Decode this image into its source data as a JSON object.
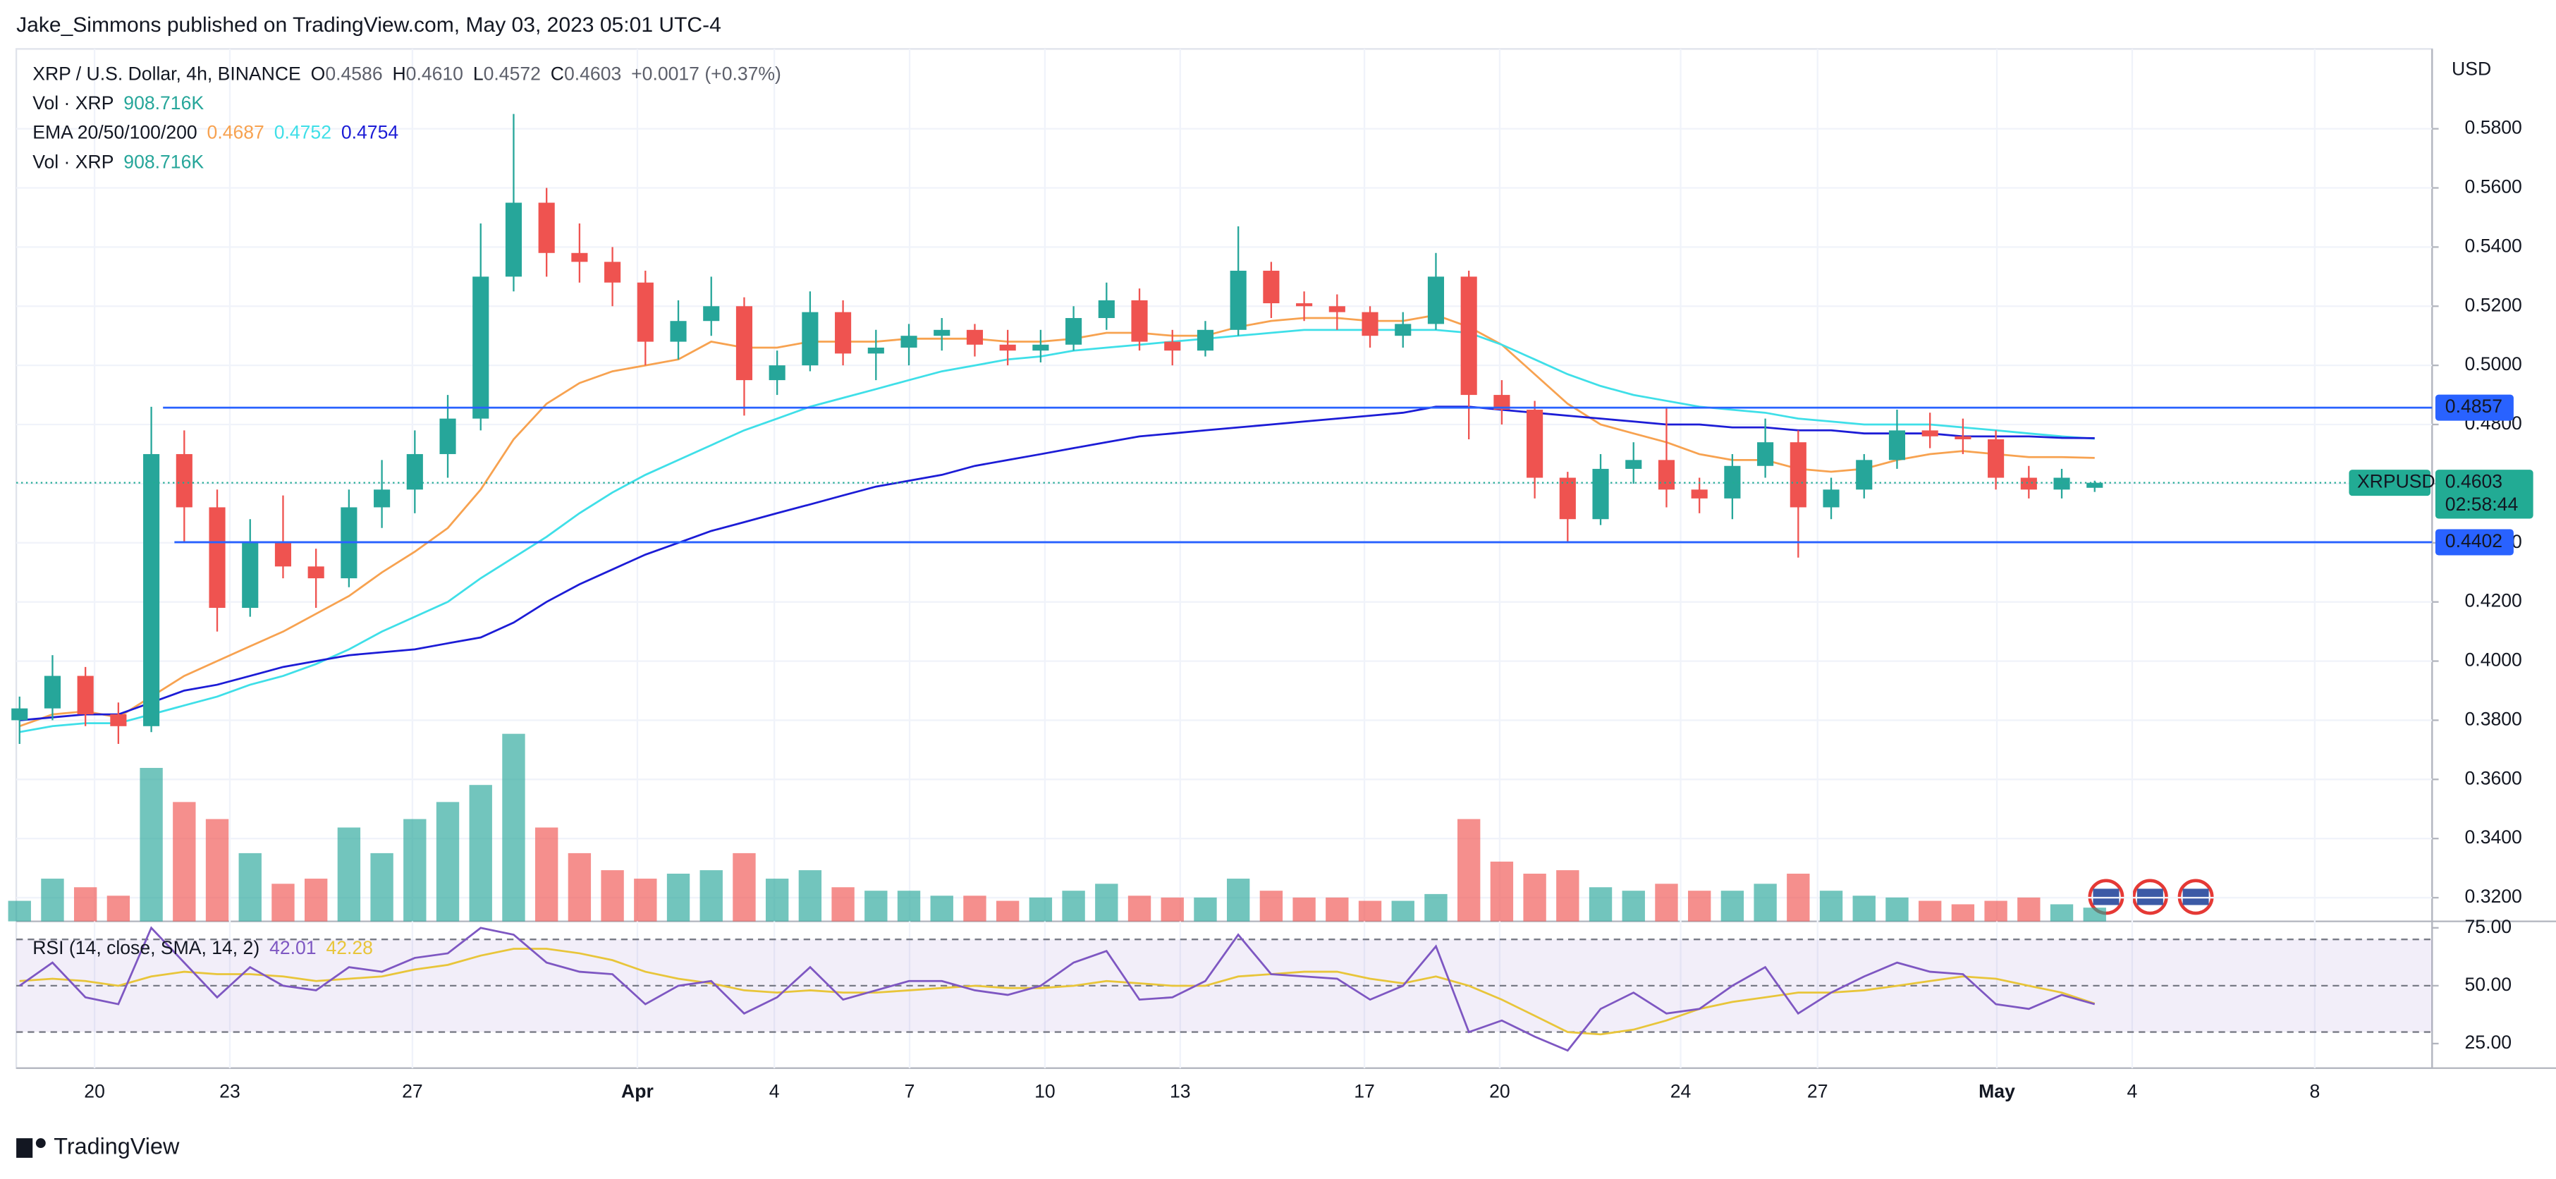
{
  "header": {
    "published": "Jake_Simmons published on TradingView.com, May 03, 2023 05:01 UTC-4",
    "legend": [
      [
        {
          "text": "XRP / U.S. Dollar, 4h, BINANCE"
        },
        {
          "text": "O"
        },
        {
          "text": "0.4586",
          "color": "#5d606b"
        },
        {
          "text": "H"
        },
        {
          "text": "0.4610",
          "color": "#5d606b"
        },
        {
          "text": "L"
        },
        {
          "text": "0.4572",
          "color": "#5d606b"
        },
        {
          "text": "C"
        },
        {
          "text": "0.4603",
          "color": "#5d606b"
        },
        {
          "text": "+0.0017 (+0.37%)",
          "color": "#5d606b"
        }
      ],
      [
        {
          "text": "Vol · XRP"
        },
        {
          "text": "908.716K",
          "color": "#26a69a"
        }
      ],
      [
        {
          "text": "EMA 20/50/100/200"
        },
        {
          "text": "0.4687",
          "color": "#f7a250"
        },
        {
          "text": "0.4752",
          "color": "#3fdfe8"
        },
        {
          "text": "0.4754",
          "color": "#1c1cd6"
        }
      ],
      [
        {
          "text": "Vol · XRP"
        },
        {
          "text": "908.716K",
          "color": "#26a69a"
        }
      ]
    ],
    "rsi_legend": [
      {
        "text": "RSI (14, close, SMA, 14, 2)"
      },
      {
        "text": "42.01",
        "color": "#7e57c2"
      },
      {
        "text": "42.28",
        "color": "#e8c53a"
      }
    ],
    "currency": "USD"
  },
  "footer": {
    "brand": "TradingView"
  },
  "chart_data": {
    "type": "candlestick",
    "x_labels": [
      "20",
      "23",
      "27",
      "Apr",
      "4",
      "7",
      "10",
      "13",
      "17",
      "20",
      "24",
      "27",
      "May",
      "4",
      "8"
    ],
    "up_color": "#26a69a",
    "down_color": "#ef5350",
    "candles": {
      "open": [
        0.38,
        0.384,
        0.395,
        0.382,
        0.378,
        0.47,
        0.452,
        0.418,
        0.44,
        0.432,
        0.428,
        0.452,
        0.458,
        0.47,
        0.482,
        0.53,
        0.555,
        0.538,
        0.535,
        0.528,
        0.508,
        0.515,
        0.52,
        0.495,
        0.5,
        0.518,
        0.504,
        0.506,
        0.51,
        0.512,
        0.507,
        0.505,
        0.507,
        0.516,
        0.522,
        0.508,
        0.505,
        0.512,
        0.532,
        0.521,
        0.52,
        0.518,
        0.51,
        0.514,
        0.53,
        0.49,
        0.485,
        0.462,
        0.448,
        0.465,
        0.468,
        0.458,
        0.455,
        0.466,
        0.474,
        0.452,
        0.458,
        0.468,
        0.478,
        0.476,
        0.475,
        0.462,
        0.458,
        0.4586
      ],
      "high": [
        0.388,
        0.402,
        0.398,
        0.386,
        0.486,
        0.478,
        0.458,
        0.448,
        0.456,
        0.438,
        0.458,
        0.468,
        0.478,
        0.49,
        0.548,
        0.585,
        0.56,
        0.548,
        0.54,
        0.532,
        0.522,
        0.53,
        0.523,
        0.505,
        0.525,
        0.522,
        0.512,
        0.514,
        0.516,
        0.514,
        0.512,
        0.512,
        0.52,
        0.528,
        0.526,
        0.512,
        0.515,
        0.547,
        0.535,
        0.525,
        0.524,
        0.52,
        0.518,
        0.538,
        0.532,
        0.495,
        0.488,
        0.464,
        0.47,
        0.474,
        0.486,
        0.462,
        0.47,
        0.482,
        0.478,
        0.462,
        0.47,
        0.485,
        0.484,
        0.482,
        0.478,
        0.466,
        0.465,
        0.461
      ],
      "low": [
        0.372,
        0.38,
        0.378,
        0.372,
        0.376,
        0.44,
        0.41,
        0.415,
        0.428,
        0.418,
        0.425,
        0.445,
        0.45,
        0.462,
        0.478,
        0.525,
        0.53,
        0.528,
        0.52,
        0.5,
        0.502,
        0.51,
        0.483,
        0.49,
        0.498,
        0.5,
        0.495,
        0.5,
        0.505,
        0.503,
        0.5,
        0.501,
        0.505,
        0.512,
        0.505,
        0.5,
        0.503,
        0.51,
        0.516,
        0.515,
        0.512,
        0.506,
        0.506,
        0.512,
        0.475,
        0.48,
        0.455,
        0.44,
        0.446,
        0.46,
        0.452,
        0.45,
        0.448,
        0.462,
        0.435,
        0.448,
        0.455,
        0.465,
        0.472,
        0.47,
        0.458,
        0.455,
        0.455,
        0.4572
      ],
      "close": [
        0.384,
        0.395,
        0.382,
        0.378,
        0.47,
        0.452,
        0.418,
        0.44,
        0.432,
        0.428,
        0.452,
        0.458,
        0.47,
        0.482,
        0.53,
        0.555,
        0.538,
        0.535,
        0.528,
        0.508,
        0.515,
        0.52,
        0.495,
        0.5,
        0.518,
        0.504,
        0.506,
        0.51,
        0.512,
        0.507,
        0.505,
        0.507,
        0.516,
        0.522,
        0.508,
        0.505,
        0.512,
        0.532,
        0.521,
        0.52,
        0.518,
        0.51,
        0.514,
        0.53,
        0.49,
        0.485,
        0.462,
        0.448,
        0.465,
        0.468,
        0.458,
        0.455,
        0.466,
        0.474,
        0.452,
        0.458,
        0.468,
        0.478,
        0.476,
        0.475,
        0.462,
        0.458,
        0.462,
        0.4603
      ]
    },
    "volume": [
      1360,
      2830,
      2260,
      1700,
      10170,
      7910,
      6780,
      4520,
      2490,
      2830,
      6220,
      4520,
      6780,
      7910,
      9040,
      12430,
      6220,
      4520,
      3390,
      2830,
      3160,
      3390,
      4520,
      2830,
      3390,
      2260,
      2030,
      2030,
      1700,
      1700,
      1360,
      1580,
      2030,
      2490,
      1700,
      1580,
      1580,
      2830,
      2030,
      1580,
      1580,
      1360,
      1360,
      1810,
      6780,
      3960,
      3160,
      3390,
      2260,
      2030,
      2490,
      2030,
      2030,
      2490,
      3160,
      2030,
      1700,
      1580,
      1360,
      1130,
      1360,
      1580,
      1130,
      908.716
    ],
    "ema_series": [
      {
        "color": "#f7a250",
        "values": [
          0.378,
          0.382,
          0.383,
          0.381,
          0.388,
          0.395,
          0.4,
          0.405,
          0.41,
          0.416,
          0.422,
          0.43,
          0.437,
          0.445,
          0.458,
          0.475,
          0.487,
          0.494,
          0.498,
          0.5,
          0.502,
          0.508,
          0.506,
          0.506,
          0.508,
          0.508,
          0.508,
          0.509,
          0.509,
          0.509,
          0.508,
          0.508,
          0.509,
          0.511,
          0.511,
          0.51,
          0.51,
          0.513,
          0.515,
          0.516,
          0.516,
          0.515,
          0.515,
          0.517,
          0.513,
          0.507,
          0.497,
          0.487,
          0.48,
          0.477,
          0.474,
          0.47,
          0.468,
          0.468,
          0.465,
          0.464,
          0.465,
          0.468,
          0.47,
          0.471,
          0.47,
          0.469,
          0.469,
          0.4687
        ]
      },
      {
        "color": "#3fdfe8",
        "values": [
          0.376,
          0.378,
          0.379,
          0.379,
          0.382,
          0.385,
          0.388,
          0.392,
          0.395,
          0.399,
          0.404,
          0.41,
          0.415,
          0.42,
          0.428,
          0.435,
          0.442,
          0.45,
          0.457,
          0.463,
          0.468,
          0.473,
          0.478,
          0.482,
          0.486,
          0.489,
          0.492,
          0.495,
          0.498,
          0.5,
          0.502,
          0.503,
          0.505,
          0.506,
          0.507,
          0.508,
          0.509,
          0.51,
          0.511,
          0.512,
          0.512,
          0.512,
          0.512,
          0.512,
          0.511,
          0.507,
          0.502,
          0.497,
          0.493,
          0.49,
          0.488,
          0.486,
          0.485,
          0.484,
          0.482,
          0.481,
          0.48,
          0.48,
          0.48,
          0.479,
          0.478,
          0.477,
          0.476,
          0.4752
        ]
      },
      {
        "color": "#1c1cd6",
        "values": [
          0.38,
          0.381,
          0.382,
          0.382,
          0.386,
          0.39,
          0.392,
          0.395,
          0.398,
          0.4,
          0.402,
          0.403,
          0.404,
          0.406,
          0.408,
          0.413,
          0.42,
          0.426,
          0.431,
          0.436,
          0.44,
          0.444,
          0.447,
          0.45,
          0.453,
          0.456,
          0.459,
          0.461,
          0.463,
          0.466,
          0.468,
          0.47,
          0.472,
          0.474,
          0.476,
          0.477,
          0.478,
          0.479,
          0.48,
          0.481,
          0.482,
          0.483,
          0.484,
          0.486,
          0.486,
          0.485,
          0.484,
          0.483,
          0.482,
          0.481,
          0.48,
          0.48,
          0.479,
          0.479,
          0.478,
          0.478,
          0.477,
          0.477,
          0.477,
          0.476,
          0.476,
          0.476,
          0.4755,
          0.4754
        ]
      }
    ],
    "hlines": [
      {
        "value": 0.4857,
        "color": "#2962ff"
      },
      {
        "value": 0.4402,
        "color": "#2962ff"
      }
    ],
    "last_price": {
      "symbol": "XRPUSD",
      "countdown": "02:58:44",
      "color": "#22ab94"
    },
    "ylim": [
      0.312,
      0.607
    ],
    "yticks": [
      {
        "value": 0.32,
        "label": "0.3200"
      },
      {
        "value": 0.34,
        "label": "0.3400"
      },
      {
        "value": 0.36,
        "label": "0.3600"
      },
      {
        "value": 0.38,
        "label": "0.3800"
      },
      {
        "value": 0.4,
        "label": "0.4000"
      },
      {
        "value": 0.42,
        "label": "0.4200"
      },
      {
        "value": 0.44,
        "label": "0.4400"
      },
      {
        "value": 0.46,
        "label": "0.4600"
      },
      {
        "value": 0.48,
        "label": "0.4800"
      },
      {
        "value": 0.5,
        "label": "0.5000"
      },
      {
        "value": 0.52,
        "label": "0.5200"
      },
      {
        "value": 0.54,
        "label": "0.5400"
      },
      {
        "value": 0.56,
        "label": "0.5600"
      },
      {
        "value": 0.58,
        "label": "0.5800"
      }
    ],
    "grid": true,
    "rsi": {
      "color": "#7e57c2",
      "values": [
        50,
        60,
        45,
        42,
        75,
        60,
        45,
        58,
        50,
        48,
        58,
        56,
        62,
        64,
        75,
        72,
        60,
        56,
        55,
        42,
        50,
        52,
        38,
        45,
        58,
        44,
        48,
        52,
        52,
        48,
        46,
        50,
        60,
        65,
        44,
        45,
        52,
        72,
        55,
        54,
        53,
        44,
        50,
        67,
        30,
        35,
        28,
        22,
        40,
        47,
        38,
        40,
        50,
        58,
        38,
        47,
        54,
        60,
        56,
        55,
        42,
        40,
        46,
        42.01
      ],
      "sma_color": "#e8c53a",
      "sma": [
        52,
        53,
        52,
        50,
        54,
        56,
        55,
        55,
        54,
        52,
        53,
        54,
        57,
        59,
        63,
        66,
        66,
        64,
        61,
        56,
        53,
        51,
        48,
        47,
        48,
        47,
        47,
        48,
        49,
        50,
        49,
        49,
        50,
        52,
        51,
        50,
        50,
        54,
        55,
        56,
        56,
        53,
        51,
        54,
        50,
        44,
        37,
        30,
        29,
        31,
        35,
        40,
        43,
        45,
        47,
        47,
        48,
        50,
        52,
        54,
        53,
        50,
        47,
        42.28
      ],
      "ylim": [
        14.4,
        77.8
      ],
      "yticks": [
        {
          "value": 25,
          "label": "25.00"
        },
        {
          "value": 50,
          "label": "50.00"
        },
        {
          "value": 75,
          "label": "75.00"
        }
      ],
      "band": [
        30,
        70
      ],
      "mid": 50
    }
  }
}
